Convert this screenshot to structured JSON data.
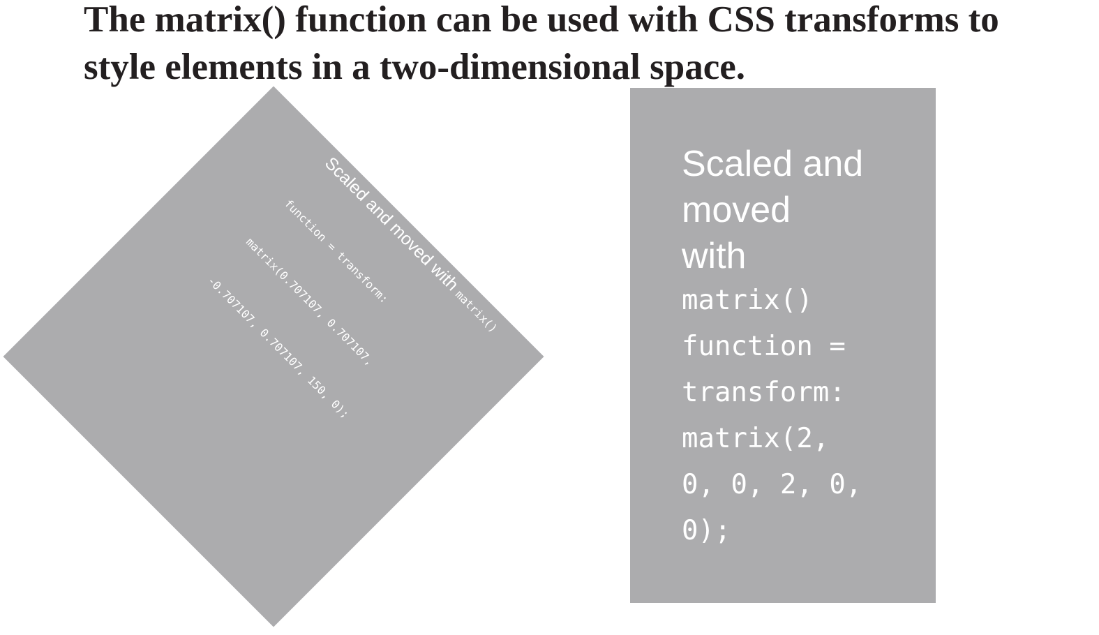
{
  "heading": {
    "line1": "The matrix() function can be used with CSS transforms to",
    "line2": "style elements in a two-dimensional space."
  },
  "rotated_box": {
    "title_text": "Scaled and moved with ",
    "title_code": "matrix()",
    "code_lines": [
      "function = transform:",
      "matrix(0.707107, 0.707107,",
      "-0.707107, 0.707107, 150, 0);"
    ],
    "background": "#acacae",
    "text_color": "#ffffff"
  },
  "scaled_box": {
    "title_lines": [
      "Scaled and",
      "moved",
      "with"
    ],
    "code_lines": [
      "matrix()",
      "function =",
      "transform:",
      "matrix(2,",
      "0, 0, 2, 0,",
      "0);"
    ],
    "background": "#acacae",
    "text_color": "#ffffff"
  }
}
